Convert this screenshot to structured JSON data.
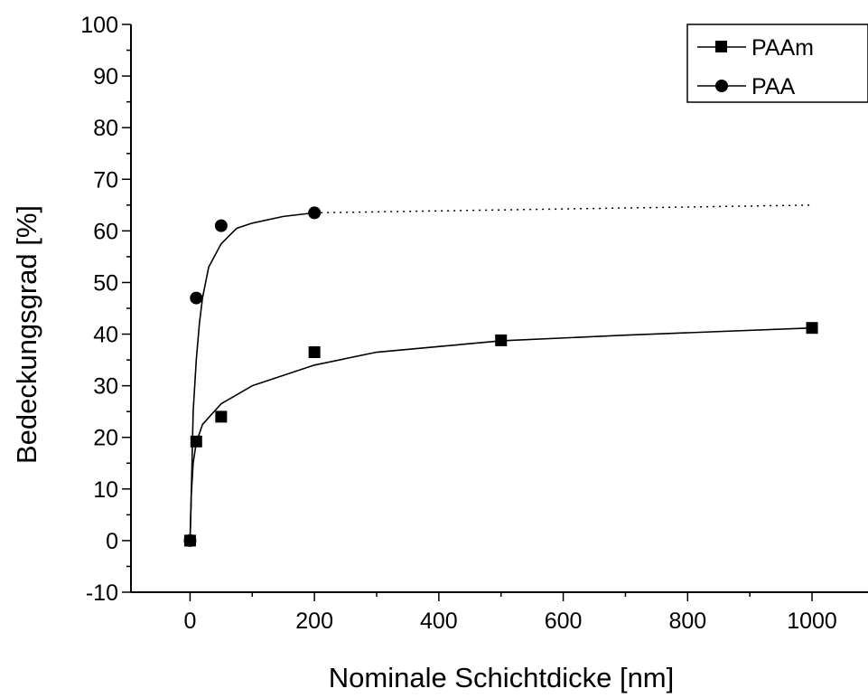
{
  "chart_data": {
    "type": "scatter",
    "title": "",
    "xlabel": "Nominale Schichtdicke [nm]",
    "ylabel": "Bedeckungsgrad [%]",
    "xlim": [
      -95,
      1090
    ],
    "ylim": [
      -10,
      100
    ],
    "xticks": [
      0,
      200,
      400,
      600,
      800,
      1000
    ],
    "yticks": [
      -10,
      0,
      10,
      20,
      30,
      40,
      50,
      60,
      70,
      80,
      90,
      100
    ],
    "x_tick_labels": [
      "0",
      "200",
      "400",
      "600",
      "800",
      "1000"
    ],
    "y_tick_labels": [
      "-10",
      "0",
      "10",
      "20",
      "30",
      "40",
      "50",
      "60",
      "70",
      "80",
      "90",
      "100"
    ],
    "grid": false,
    "legend": "top-right",
    "series": [
      {
        "name": "PAAm",
        "marker": "square",
        "color": "#000000",
        "x": [
          0,
          10,
          50,
          200,
          500,
          1000
        ],
        "y": [
          0,
          19.2,
          24,
          36.5,
          38.8,
          41.2
        ],
        "fit_curve": {
          "style": "solid",
          "x": [
            0,
            2,
            5,
            10,
            20,
            50,
            100,
            200,
            300,
            500,
            700,
            1000
          ],
          "y": [
            0,
            9,
            15,
            19,
            22.5,
            26.5,
            30,
            34,
            36.5,
            38.7,
            39.8,
            41.2
          ]
        }
      },
      {
        "name": "PAA",
        "marker": "circle",
        "color": "#000000",
        "x": [
          0,
          10,
          50,
          200
        ],
        "y": [
          0,
          47,
          61,
          63.5
        ],
        "fit_curve": {
          "style": "solid",
          "x": [
            0,
            2,
            5,
            10,
            15,
            20,
            30,
            50,
            75,
            100,
            150,
            200
          ],
          "y": [
            0,
            9,
            25,
            35,
            42,
            47,
            53,
            57.5,
            60.5,
            61.5,
            62.8,
            63.5
          ]
        },
        "extension": {
          "style": "dotted",
          "x": [
            200,
            1000
          ],
          "y": [
            63.5,
            65
          ]
        }
      }
    ]
  }
}
